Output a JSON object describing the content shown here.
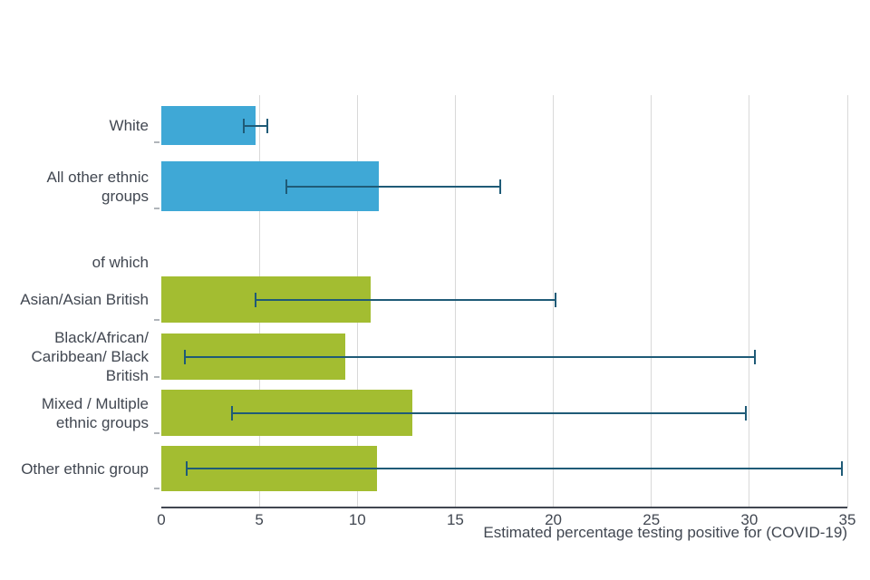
{
  "chart_data": {
    "type": "bar",
    "orientation": "horizontal",
    "xlabel": "Estimated percentage testing positive for (COVID-19)",
    "xlim": [
      0,
      35
    ],
    "xticks": [
      0,
      5,
      10,
      15,
      20,
      25,
      30,
      35
    ],
    "grid": true,
    "legend": "none",
    "rows": [
      {
        "label": "White",
        "value": 4.8,
        "ci_low": 4.2,
        "ci_high": 5.4,
        "group": "headline"
      },
      {
        "label": "All other ethnic groups",
        "value": 11.1,
        "ci_low": 6.4,
        "ci_high": 17.3,
        "group": "headline"
      },
      {
        "label": "of which",
        "value": null,
        "ci_low": null,
        "ci_high": null,
        "group": "heading"
      },
      {
        "label": "Asian/Asian British",
        "value": 10.7,
        "ci_low": 4.8,
        "ci_high": 20.1,
        "group": "breakdown"
      },
      {
        "label": "Black/African/ Caribbean/ Black British",
        "value": 9.4,
        "ci_low": 1.2,
        "ci_high": 30.3,
        "group": "breakdown"
      },
      {
        "label": "Mixed / Multiple ethnic groups",
        "value": 12.8,
        "ci_low": 3.6,
        "ci_high": 29.8,
        "group": "breakdown"
      },
      {
        "label": "Other ethnic group",
        "value": 11.0,
        "ci_low": 1.3,
        "ci_high": 34.7,
        "group": "breakdown"
      }
    ],
    "colors": {
      "headline_bar": "#3fa8d6",
      "breakdown_bar": "#a3bd31",
      "error_bar": "#1f5b77",
      "grid": "#d9d9d9",
      "axis": "#414751",
      "text": "#414751"
    }
  }
}
